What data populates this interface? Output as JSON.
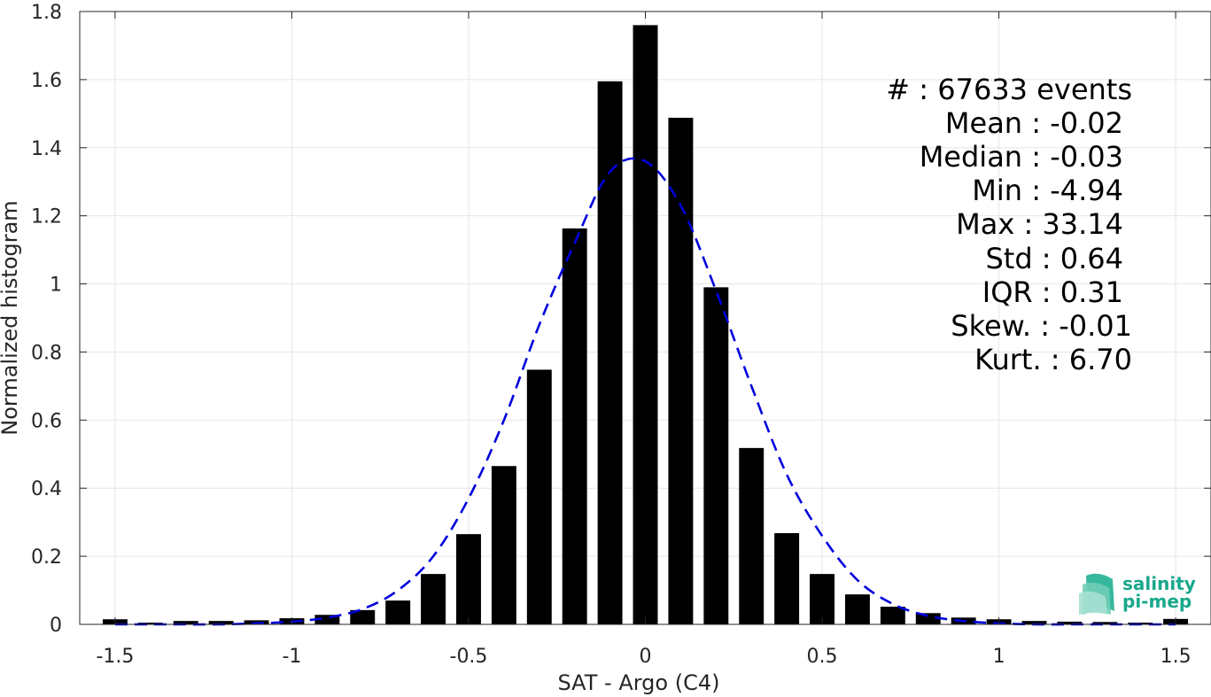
{
  "chart_data": {
    "type": "bar",
    "xlabel": "SAT - Argo (C4)",
    "ylabel": "Normalized histogram",
    "xlim": [
      -1.6,
      1.6
    ],
    "ylim": [
      0,
      1.8
    ],
    "xticks": [
      -1.5,
      -1,
      -0.5,
      0,
      0.5,
      1,
      1.5
    ],
    "xtick_labels": [
      "-1.5",
      "-1",
      "-0.5",
      "0",
      "0.5",
      "1",
      "1.5"
    ],
    "yticks": [
      0,
      0.2,
      0.4,
      0.6,
      0.8,
      1,
      1.2,
      1.4,
      1.6,
      1.8
    ],
    "ytick_labels": [
      "0",
      "0.2",
      "0.4",
      "0.6",
      "0.8",
      "1",
      "1.2",
      "1.4",
      "1.6",
      "1.8"
    ],
    "grid": true,
    "bar_width": 0.07,
    "bar_color": "#000000",
    "fit_color": "#0000dd",
    "bins": [
      -1.5,
      -1.4,
      -1.3,
      -1.2,
      -1.1,
      -1.0,
      -0.9,
      -0.8,
      -0.7,
      -0.6,
      -0.5,
      -0.4,
      -0.3,
      -0.2,
      -0.1,
      0.0,
      0.1,
      0.2,
      0.3,
      0.4,
      0.5,
      0.6,
      0.7,
      0.8,
      0.9,
      1.0,
      1.1,
      1.2,
      1.3,
      1.4,
      1.5
    ],
    "values": [
      0.015,
      0.005,
      0.01,
      0.01,
      0.012,
      0.018,
      0.028,
      0.042,
      0.07,
      0.148,
      0.265,
      0.465,
      0.748,
      1.163,
      1.595,
      1.76,
      1.488,
      0.99,
      0.518,
      0.268,
      0.148,
      0.088,
      0.052,
      0.033,
      0.02,
      0.015,
      0.01,
      0.008,
      0.007,
      0.005,
      0.016
    ],
    "fit_series": {
      "x": [
        -1.5,
        -1.4,
        -1.3,
        -1.2,
        -1.1,
        -1.0,
        -0.9,
        -0.8,
        -0.7,
        -0.6,
        -0.5,
        -0.4,
        -0.3,
        -0.2,
        -0.1,
        0.0,
        0.1,
        0.2,
        0.3,
        0.4,
        0.5,
        0.6,
        0.7,
        0.8,
        0.9,
        1.0,
        1.1,
        1.2,
        1.3,
        1.4,
        1.5
      ],
      "y": [
        0.0,
        0.0,
        0.0,
        0.0,
        0.003,
        0.008,
        0.02,
        0.045,
        0.1,
        0.2,
        0.37,
        0.6,
        0.88,
        1.12,
        1.33,
        1.36,
        1.23,
        0.98,
        0.7,
        0.44,
        0.26,
        0.13,
        0.06,
        0.025,
        0.01,
        0.003,
        0.0,
        0.0,
        0.0,
        0.0,
        0.0
      ]
    },
    "stats_lines": [
      "#  : 67633 events",
      "Mean : -0.02",
      "Median : -0.03",
      "Min : -4.94",
      "Max : 33.14",
      "Std : 0.64",
      "IQR : 0.31",
      "Skew. : -0.01",
      "Kurt. : 6.70"
    ]
  },
  "logo": {
    "line1": "salinity",
    "line2": "pi-mep",
    "color": "#1aa88c"
  }
}
